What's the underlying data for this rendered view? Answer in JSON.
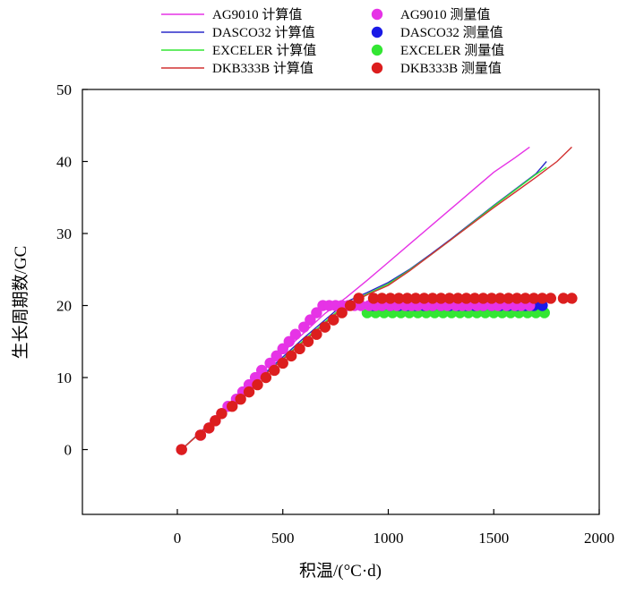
{
  "chart_data": {
    "type": "line",
    "title": "",
    "xlabel": "积温/(°C·d)",
    "ylabel": "生长周期数/GC",
    "xlim": [
      -450,
      2000
    ],
    "ylim": [
      -9,
      50
    ],
    "xticks": [
      0,
      500,
      1000,
      1500,
      2000
    ],
    "yticks": [
      0,
      10,
      20,
      30,
      40,
      50
    ],
    "xtick_labels": [
      "0",
      "500",
      "1000",
      "1500",
      "2000"
    ],
    "ytick_labels": [
      "0",
      "10",
      "20",
      "30",
      "40",
      "50"
    ],
    "grid": false,
    "legend_placement": "top, above plot, two columns",
    "series": [
      {
        "name": "AG9010 计算值",
        "kind": "line",
        "color": "#e633e6",
        "x": [
          20,
          100,
          200,
          300,
          400,
          500,
          600,
          700,
          800,
          900,
          1000,
          1100,
          1200,
          1300,
          1400,
          1500,
          1600,
          1670
        ],
        "y": [
          0,
          2.2,
          5,
          8,
          10.8,
          13.5,
          16.2,
          18.9,
          21.1,
          23.5,
          26,
          28.5,
          31,
          33.5,
          36,
          38.5,
          40.5,
          42
        ]
      },
      {
        "name": "DASCO32 计算值",
        "kind": "line",
        "color": "#2a2ac8",
        "x": [
          20,
          200,
          400,
          600,
          800,
          900,
          1000,
          1100,
          1200,
          1300,
          1400,
          1500,
          1600,
          1700,
          1750
        ],
        "y": [
          0,
          4.8,
          10.2,
          15.5,
          20.5,
          21.8,
          23.2,
          25,
          27.1,
          29.3,
          31.6,
          33.9,
          36.1,
          38.3,
          40
        ]
      },
      {
        "name": "EXCELER 计算值",
        "kind": "line",
        "color": "#33e633",
        "x": [
          20,
          200,
          400,
          600,
          800,
          900,
          1000,
          1100,
          1200,
          1300,
          1400,
          1500,
          1600,
          1700,
          1750
        ],
        "y": [
          0,
          4.8,
          10,
          15.2,
          20.2,
          21.6,
          23,
          24.9,
          27,
          29.2,
          31.5,
          33.8,
          36,
          38.2,
          39.2
        ]
      },
      {
        "name": "DKB333B 计算值",
        "kind": "line",
        "color": "#d23232",
        "x": [
          20,
          200,
          400,
          600,
          800,
          900,
          1000,
          1100,
          1200,
          1300,
          1400,
          1500,
          1600,
          1700,
          1800,
          1870
        ],
        "y": [
          0,
          4.7,
          10,
          15,
          20,
          21.5,
          22.8,
          24.8,
          27,
          29.2,
          31.4,
          33.6,
          35.7,
          37.8,
          40,
          42
        ]
      },
      {
        "name": "AG9010 测量值",
        "kind": "scatter",
        "color": "#e633e6",
        "x": [
          20,
          110,
          150,
          180,
          210,
          240,
          280,
          310,
          340,
          370,
          400,
          440,
          470,
          500,
          530,
          560,
          600,
          630,
          660,
          690,
          720,
          750,
          780,
          810,
          840,
          870,
          910,
          940,
          970,
          1010,
          1040,
          1080,
          1110,
          1140,
          1180,
          1210,
          1250,
          1280,
          1320,
          1350,
          1380,
          1420,
          1450,
          1490,
          1520,
          1560,
          1600,
          1630,
          1670
        ],
        "y": [
          0,
          2,
          3,
          4,
          5,
          6,
          7,
          8,
          9,
          10,
          11,
          12,
          13,
          14,
          15,
          16,
          17,
          18,
          19,
          20,
          21,
          21,
          21,
          21,
          21,
          21,
          21,
          21,
          21,
          21,
          21,
          21,
          21,
          21,
          21,
          21,
          21,
          21,
          21,
          21,
          21,
          21,
          21,
          21,
          21,
          21,
          21,
          21,
          21
        ],
        "note_y_plateau": 20
      },
      {
        "name": "DASCO32 测量值",
        "kind": "scatter",
        "color": "#1a1ae6",
        "x": [
          930,
          970,
          1010,
          1050,
          1090,
          1130,
          1170,
          1210,
          1250,
          1290,
          1330,
          1370,
          1410,
          1450,
          1490,
          1530,
          1570,
          1610,
          1650,
          1690,
          1730
        ],
        "y": [
          20,
          20,
          20,
          20,
          20,
          20,
          20,
          20,
          20,
          20,
          20,
          20,
          20,
          20,
          20,
          20,
          20,
          20,
          20,
          20,
          20
        ]
      },
      {
        "name": "EXCELER 测量值",
        "kind": "scatter",
        "color": "#33e633",
        "x": [
          900,
          940,
          980,
          1020,
          1060,
          1100,
          1140,
          1180,
          1220,
          1260,
          1300,
          1340,
          1380,
          1420,
          1460,
          1500,
          1540,
          1580,
          1620,
          1660,
          1700,
          1740
        ],
        "y": [
          19,
          19,
          19,
          19,
          19,
          19,
          19,
          19,
          19,
          19,
          19,
          19,
          19,
          19,
          19,
          19,
          19,
          19,
          19,
          19,
          19,
          19
        ]
      },
      {
        "name": "DKB333B 测量值",
        "kind": "scatter",
        "color": "#dc1e1e",
        "x": [
          20,
          110,
          150,
          180,
          210,
          260,
          300,
          340,
          380,
          420,
          460,
          500,
          540,
          580,
          620,
          660,
          700,
          740,
          780,
          820,
          860,
          930,
          970,
          1010,
          1050,
          1090,
          1130,
          1170,
          1210,
          1250,
          1290,
          1330,
          1370,
          1410,
          1450,
          1490,
          1530,
          1570,
          1610,
          1650,
          1690,
          1730,
          1770,
          1830,
          1870
        ],
        "y": [
          0,
          2,
          3,
          4,
          5,
          6,
          7,
          8,
          9,
          10,
          11,
          12,
          13,
          14,
          15,
          16,
          17,
          18,
          19,
          20,
          21,
          21,
          21,
          21,
          21,
          21,
          21,
          21,
          21,
          21,
          21,
          21,
          21,
          21,
          21,
          21,
          21,
          21,
          21,
          21,
          21,
          21,
          21,
          21,
          21
        ]
      }
    ]
  }
}
